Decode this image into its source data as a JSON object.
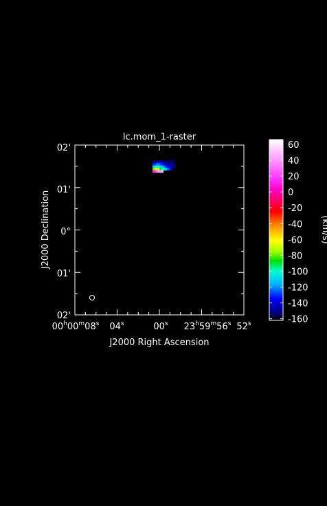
{
  "chart_data": {
    "type": "heatmap",
    "title": "lc.mom_1-raster",
    "xlabel": "J2000 Right Ascension",
    "ylabel": "J2000 Declination",
    "x_tick_labels": [
      {
        "parts": [
          [
            "00",
            ""
          ],
          [
            "h",
            "sup"
          ],
          [
            "00",
            ""
          ],
          [
            "m",
            "sup"
          ],
          [
            "08",
            ""
          ],
          [
            "s",
            "sup"
          ]
        ]
      },
      {
        "parts": [
          [
            "04",
            ""
          ],
          [
            "s",
            "sup"
          ]
        ]
      },
      {
        "parts": [
          [
            "00",
            ""
          ],
          [
            "s",
            "sup"
          ]
        ]
      },
      {
        "parts": [
          [
            "23",
            ""
          ],
          [
            "h",
            "sup"
          ],
          [
            "59",
            ""
          ],
          [
            "m",
            "sup"
          ],
          [
            "56",
            ""
          ],
          [
            "s",
            "sup"
          ]
        ]
      },
      {
        "parts": [
          [
            "52",
            ""
          ],
          [
            "s",
            "sup"
          ]
        ]
      }
    ],
    "y_tick_labels": [
      "02'",
      "01'",
      "0°",
      "01'",
      "02'"
    ],
    "colorbar": {
      "label": "(km/s)",
      "range": [
        -162,
        66
      ],
      "ticks": [
        "60",
        "40",
        "20",
        "0",
        "-20",
        "-40",
        "-60",
        "-80",
        "-100",
        "-120",
        "-140",
        "-160"
      ],
      "tick_values": [
        60,
        40,
        20,
        0,
        -20,
        -40,
        -60,
        -80,
        -100,
        -120,
        -140,
        -160
      ]
    },
    "emission": {
      "description": "Moment-1 velocity patch",
      "velocities_kms": [
        [
          -150,
          -150,
          -150,
          -140,
          -140,
          -140,
          -150,
          -150,
          -150,
          -155,
          -155,
          -155,
          -160
        ],
        [
          -130,
          -130,
          -120,
          -120,
          -130,
          -130,
          -140,
          -145,
          -145,
          -150,
          -150,
          -150,
          -155
        ],
        [
          -110,
          -100,
          -100,
          -100,
          -110,
          -110,
          -120,
          -130,
          -140,
          -140,
          -145,
          -150,
          -150
        ],
        [
          -80,
          -70,
          -60,
          -70,
          -90,
          -100,
          -100,
          -110,
          -120,
          -130,
          -140,
          null,
          null
        ],
        [
          10,
          20,
          30,
          40,
          40,
          50,
          null,
          null,
          null,
          null,
          null,
          null,
          null
        ]
      ]
    },
    "beam_marker": "ellipse",
    "grid": false
  }
}
